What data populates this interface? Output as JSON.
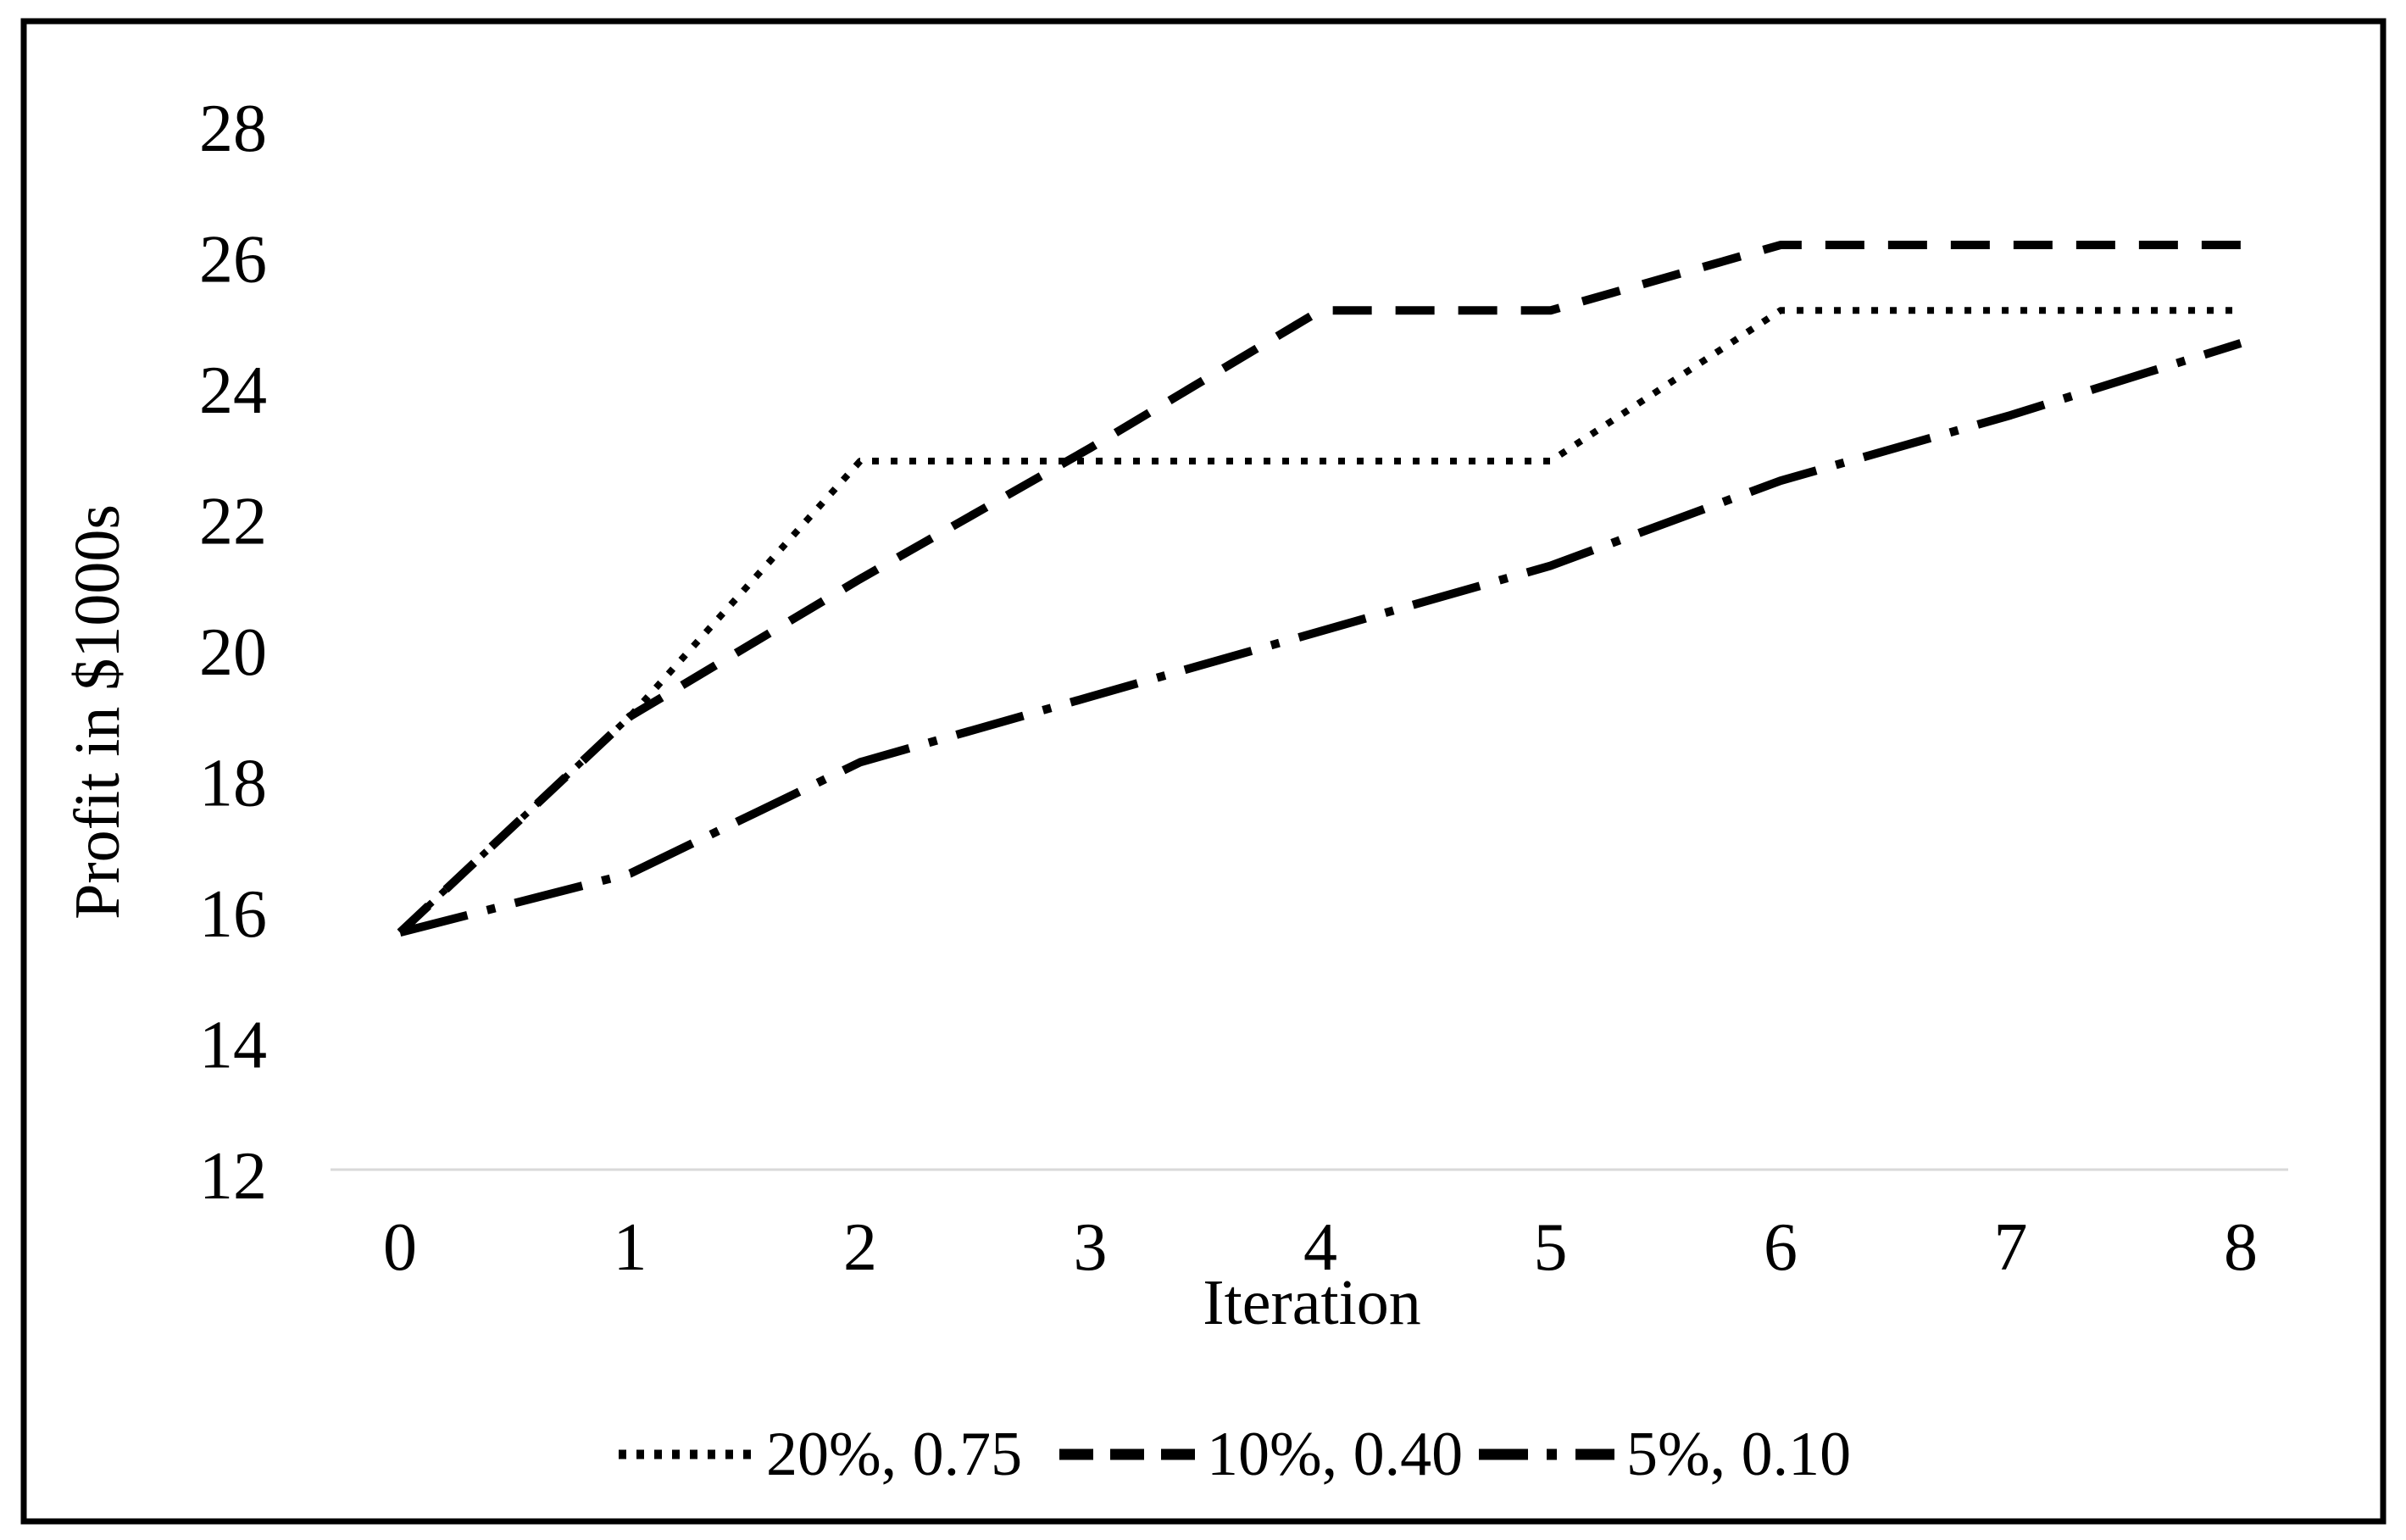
{
  "chart_data": {
    "type": "line",
    "title": "",
    "xlabel": "Iteration",
    "ylabel": "Profit in $1000s",
    "x": [
      0,
      1,
      2,
      3,
      4,
      5,
      6,
      7,
      8
    ],
    "x_ticks": [
      "0",
      "1",
      "2",
      "3",
      "4",
      "5",
      "6",
      "7",
      "8"
    ],
    "y_ticks": [
      "28",
      "26",
      "24",
      "22",
      "20",
      "18",
      "16",
      "14",
      "12"
    ],
    "y_tick_values": [
      28,
      26,
      24,
      22,
      20,
      18,
      16,
      14,
      12
    ],
    "xlim": [
      0,
      8
    ],
    "ylim": [
      12,
      28
    ],
    "grid": false,
    "legend_position": "bottom-center",
    "series": [
      {
        "name": "20%, 0.75",
        "line_style": "dotted",
        "color": "#000000",
        "values": [
          15.7,
          19.0,
          22.9,
          22.9,
          22.9,
          22.9,
          25.2,
          25.2,
          25.2
        ]
      },
      {
        "name": "10%, 0.40",
        "line_style": "dashed",
        "color": "#000000",
        "values": [
          15.7,
          19.0,
          21.1,
          23.1,
          25.2,
          25.2,
          26.2,
          26.2,
          26.2
        ]
      },
      {
        "name": "5%, 0.10",
        "line_style": "dashdot",
        "color": "#000000",
        "values": [
          15.7,
          16.6,
          18.3,
          19.3,
          20.3,
          21.3,
          22.6,
          23.6,
          24.7
        ]
      }
    ],
    "axis_line_color": "#d9d9d9",
    "text_color": "#000000",
    "border_color": "#000000",
    "background": "#ffffff"
  }
}
